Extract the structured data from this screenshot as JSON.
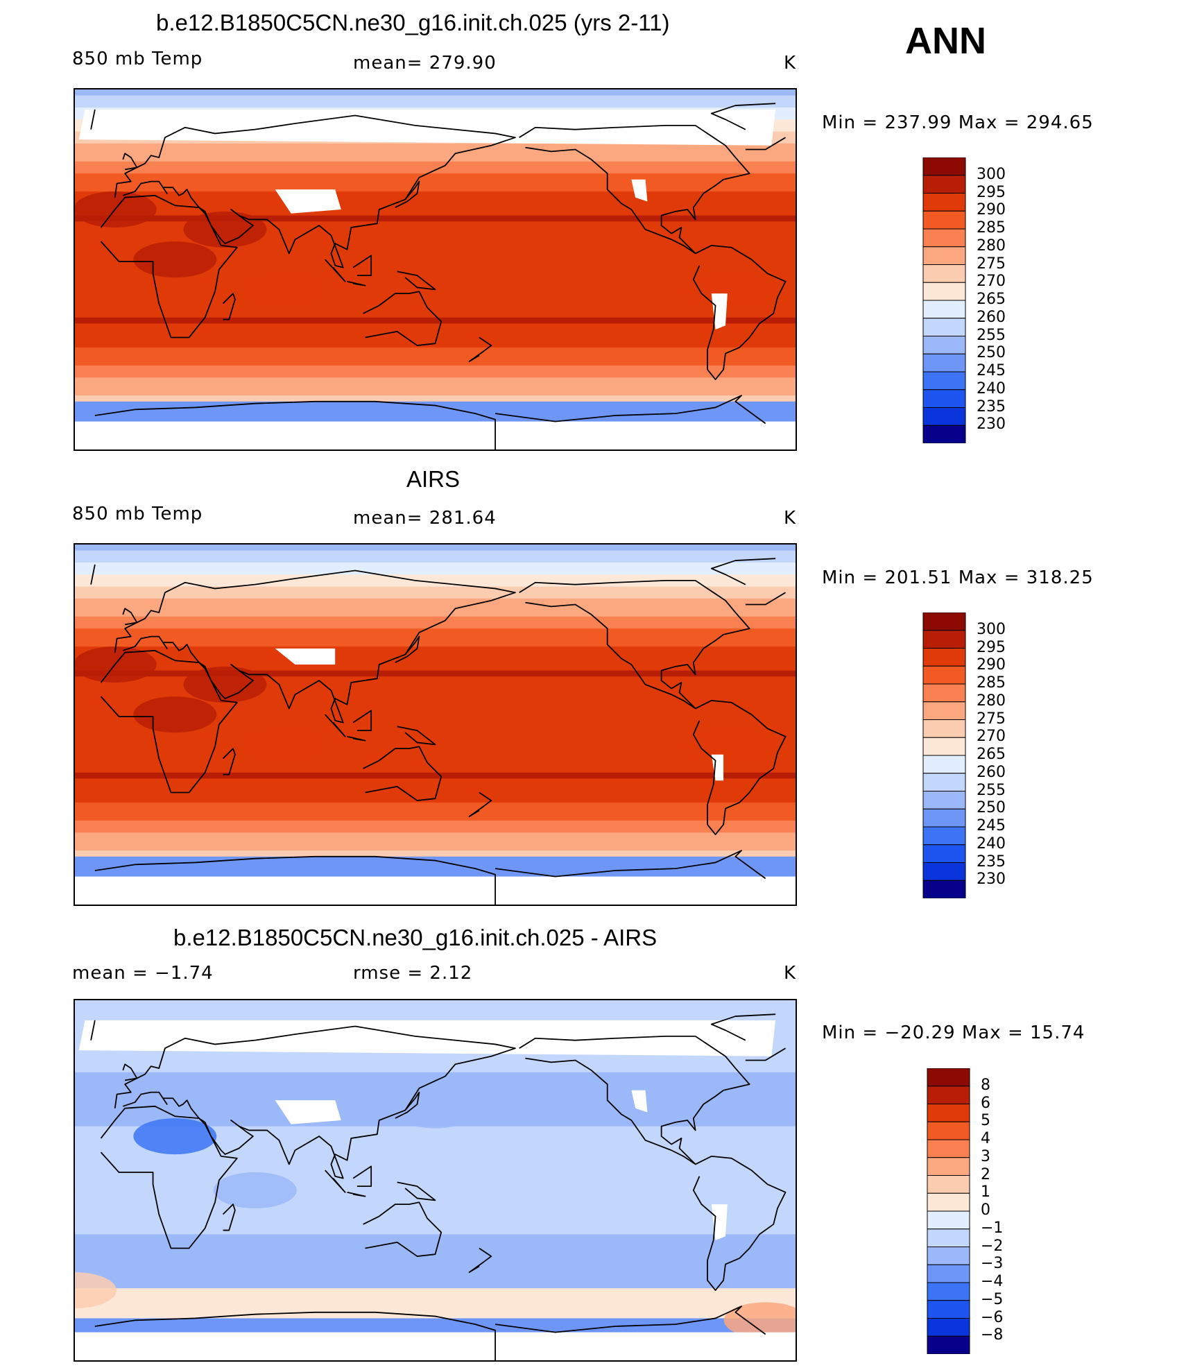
{
  "season": "ANN",
  "palettes": {
    "abs": [
      "#06008a",
      "#0a1ab8",
      "#0a34dc",
      "#1e54f0",
      "#3c74f5",
      "#6e96f7",
      "#9bb8f9",
      "#c3d6fb",
      "#e2eefd",
      "#fde8d8",
      "#fcccb0",
      "#fba880",
      "#f98050",
      "#f25a24",
      "#e03a08",
      "#b81e05",
      "#8c0a02"
    ],
    "diff": [
      "#06008a",
      "#0a1ab8",
      "#0a34dc",
      "#1e54f0",
      "#3c74f5",
      "#6e96f7",
      "#9bb8f9",
      "#c3d6fb",
      "#e2eefd",
      "#fde8d8",
      "#fcccb0",
      "#fba880",
      "#f98050",
      "#f25a24",
      "#e03a08",
      "#b81e05",
      "#8c0a02"
    ]
  },
  "panels": [
    {
      "title": "b.e12.B1850C5CN.ne30_g16.init.ch.025 (yrs 2-11)",
      "left_label": "850 mb Temp",
      "center_label": "mean=  279.90",
      "units": "K",
      "minmax": "Min  =  237.99  Max  =  294.65",
      "colorbar_labels": [
        "300",
        "295",
        "290",
        "285",
        "280",
        "275",
        "270",
        "265",
        "260",
        "255",
        "250",
        "245",
        "240",
        "235",
        "230"
      ],
      "field": "model"
    },
    {
      "title": "AIRS",
      "left_label": "850 mb Temp",
      "center_label": "mean=  281.64",
      "units": "K",
      "minmax": "Min  =  201.51  Max  =  318.25",
      "colorbar_labels": [
        "300",
        "295",
        "290",
        "285",
        "280",
        "275",
        "270",
        "265",
        "260",
        "255",
        "250",
        "245",
        "240",
        "235",
        "230"
      ],
      "field": "obs"
    },
    {
      "title": "b.e12.B1850C5CN.ne30_g16.init.ch.025 - AIRS",
      "left_label": "mean  =     −1.74",
      "center_label": "rmse  =     2.12",
      "units": "K",
      "minmax": "Min  =  −20.29  Max  =    15.74",
      "colorbar_labels": [
        "8",
        "6",
        "5",
        "4",
        "3",
        "2",
        "1",
        "0",
        "−1",
        "−2",
        "−3",
        "−4",
        "−5",
        "−6",
        "−8"
      ],
      "field": "diff"
    }
  ]
}
